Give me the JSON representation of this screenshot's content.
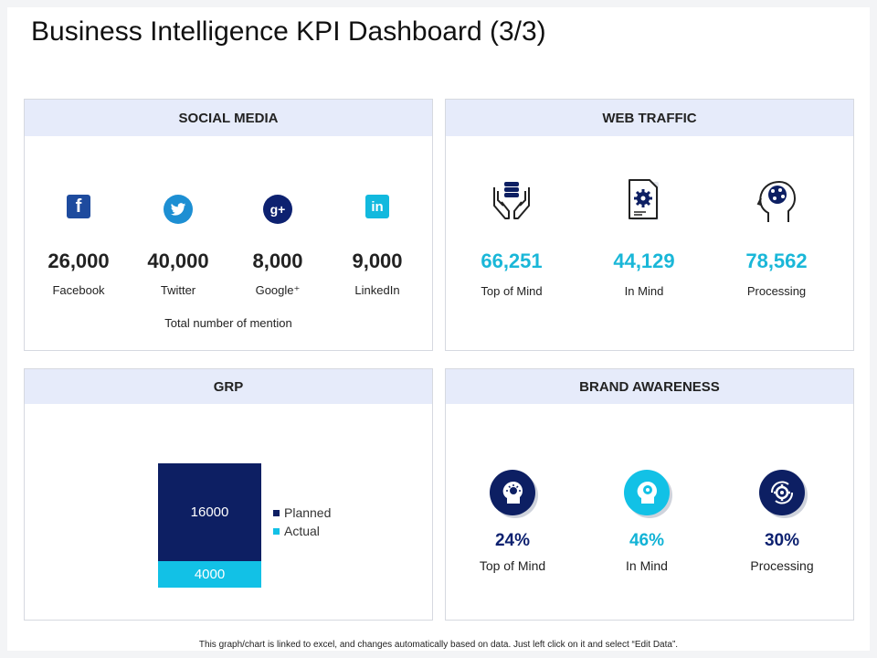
{
  "title": "Business Intelligence KPI Dashboard (3/3)",
  "social_media": {
    "header": "SOCIAL MEDIA",
    "items": [
      {
        "icon": "facebook-icon",
        "value": "26,000",
        "label": "Facebook",
        "color": "#1e4b9e"
      },
      {
        "icon": "twitter-icon",
        "value": "40,000",
        "label": "Twitter",
        "color": "#1d8fd3"
      },
      {
        "icon": "google-plus-icon",
        "value": "8,000",
        "label": "Google⁺",
        "color": "#0d2170"
      },
      {
        "icon": "linkedin-icon",
        "value": "9,000",
        "label": "LinkedIn",
        "color": "#12b9de"
      }
    ],
    "caption": "Total number of mention"
  },
  "web_traffic": {
    "header": "WEB TRAFFIC",
    "items": [
      {
        "icon": "hands-coins-icon",
        "value": "66,251",
        "label": "Top of Mind"
      },
      {
        "icon": "document-gear-icon",
        "value": "44,129",
        "label": "In Mind"
      },
      {
        "icon": "head-brain-icon",
        "value": "78,562",
        "label": "Processing"
      }
    ],
    "accent": "#1ab7d8"
  },
  "grp": {
    "header": "GRP",
    "planned_label": "16000",
    "actual_label": "4000",
    "legend": [
      {
        "name": "Planned",
        "color": "#0d1f63"
      },
      {
        "name": "Actual",
        "color": "#12c1e6"
      }
    ]
  },
  "brand_awareness": {
    "header": "BRAND AWARENESS",
    "items": [
      {
        "icon": "head-idea-icon",
        "value": "24%",
        "label": "Top of Mind",
        "color": "#0d1f63"
      },
      {
        "icon": "head-gear-icon",
        "value": "46%",
        "label": "In Mind",
        "color": "#12c1e6"
      },
      {
        "icon": "gear-cycle-icon",
        "value": "30%",
        "label": "Processing",
        "color": "#0d1f63"
      }
    ]
  },
  "chart_data": {
    "type": "bar",
    "categories": [
      ""
    ],
    "series": [
      {
        "name": "Planned",
        "values": [
          16000
        ]
      },
      {
        "name": "Actual",
        "values": [
          4000
        ]
      }
    ]
  },
  "footer": "This graph/chart is linked to excel, and changes automatically based on data. Just left click on it and select “Edit Data”."
}
